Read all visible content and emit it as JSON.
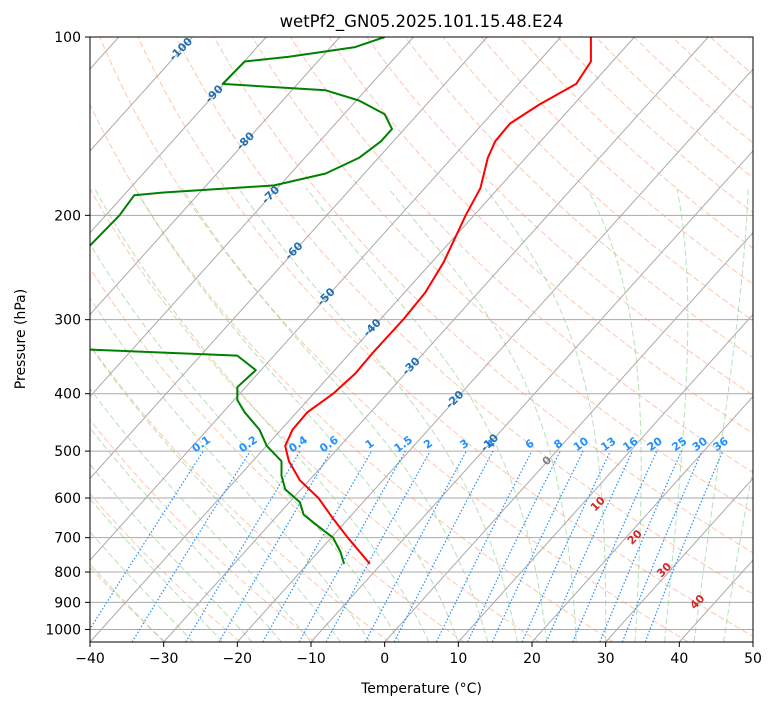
{
  "chart_data": {
    "type": "line",
    "title": "wetPf2_GN05.2025.101.15.48.E24",
    "xlabel": "Temperature (°C)",
    "ylabel": "Pressure (hPa)",
    "xlim": [
      -40,
      50
    ],
    "ylim_hpa": [
      1050,
      100
    ],
    "y_scale": "log",
    "grid": true,
    "x_ticks": [
      -40,
      -30,
      -20,
      -10,
      0,
      10,
      20,
      30,
      40,
      50
    ],
    "y_ticks": [
      100,
      200,
      300,
      400,
      500,
      600,
      700,
      800,
      900,
      1000
    ],
    "colors": {
      "temperature": "#ff0000",
      "dewpoint": "#008000",
      "isotherm": "#aaaaaa",
      "dry_adiabat": "#ff9966",
      "moist_adiabat": "#88cc88",
      "mixing_ratio": "#1e90ff",
      "isotherm_label": "#1f6fb5",
      "theta_label": "#d62728"
    },
    "series": [
      {
        "key": "temperature",
        "points": [
          {
            "p": 775,
            "t": -2.0
          },
          {
            "p": 700,
            "t": -5.0
          },
          {
            "p": 650,
            "t": -7.0
          },
          {
            "p": 600,
            "t": -9.0
          },
          {
            "p": 560,
            "t": -11.5
          },
          {
            "p": 520,
            "t": -13.0
          },
          {
            "p": 490,
            "t": -13.5
          },
          {
            "p": 460,
            "t": -12.5
          },
          {
            "p": 430,
            "t": -10.5
          },
          {
            "p": 400,
            "t": -7.0
          },
          {
            "p": 370,
            "t": -4.0
          },
          {
            "p": 340,
            "t": -1.5
          },
          {
            "p": 300,
            "t": 2.5
          },
          {
            "p": 270,
            "t": 5.5
          },
          {
            "p": 240,
            "t": 8.0
          },
          {
            "p": 200,
            "t": 11.0
          },
          {
            "p": 180,
            "t": 13.0
          },
          {
            "p": 160,
            "t": 14.0
          },
          {
            "p": 150,
            "t": 15.0
          },
          {
            "p": 140,
            "t": 17.0
          },
          {
            "p": 130,
            "t": 21.0
          },
          {
            "p": 120,
            "t": 26.0
          },
          {
            "p": 110,
            "t": 28.0
          },
          {
            "p": 100,
            "t": 28.0
          }
        ]
      },
      {
        "key": "dewpoint",
        "points": [
          {
            "p": 775,
            "t": -5.5
          },
          {
            "p": 740,
            "t": -6.0
          },
          {
            "p": 700,
            "t": -7.0
          },
          {
            "p": 670,
            "t": -9.0
          },
          {
            "p": 640,
            "t": -11.0
          },
          {
            "p": 610,
            "t": -11.5
          },
          {
            "p": 580,
            "t": -13.5
          },
          {
            "p": 550,
            "t": -14.0
          },
          {
            "p": 520,
            "t": -14.0
          },
          {
            "p": 490,
            "t": -16.0
          },
          {
            "p": 460,
            "t": -17.0
          },
          {
            "p": 430,
            "t": -19.0
          },
          {
            "p": 410,
            "t": -20.0
          },
          {
            "p": 390,
            "t": -20.0
          },
          {
            "p": 365,
            "t": -17.5
          },
          {
            "p": 345,
            "t": -20.0
          },
          {
            "p": 337,
            "t": -40.0
          }
        ]
      },
      {
        "key": "dewpoint_upper",
        "points": [
          {
            "p": 225,
            "t": -40.0
          },
          {
            "p": 200,
            "t": -36.0
          },
          {
            "p": 185,
            "t": -34.0
          },
          {
            "p": 183,
            "t": -30.0
          },
          {
            "p": 178,
            "t": -15.0
          },
          {
            "p": 170,
            "t": -8.0
          },
          {
            "p": 160,
            "t": -3.5
          },
          {
            "p": 150,
            "t": -0.5
          },
          {
            "p": 143,
            "t": 1.0
          },
          {
            "p": 135,
            "t": 0.0
          },
          {
            "p": 128,
            "t": -3.5
          },
          {
            "p": 123,
            "t": -8.0
          },
          {
            "p": 120,
            "t": -22.0
          },
          {
            "p": 110,
            "t": -19.0
          },
          {
            "p": 108,
            "t": -13.0
          },
          {
            "p": 104,
            "t": -4.0
          },
          {
            "p": 100,
            "t": 0.0
          }
        ]
      }
    ],
    "isotherm_labels": [
      "-100",
      "-90",
      "-80",
      "-70",
      "-60",
      "-50",
      "-40",
      "-30",
      "-20",
      "-10",
      "0"
    ],
    "mixing_ratio_labels": [
      "0.1",
      "0.2",
      "0.4",
      "0.6",
      "1",
      "1.5",
      "2",
      "3",
      "4",
      "6",
      "8",
      "10",
      "13",
      "16",
      "20",
      "25",
      "30",
      "36"
    ],
    "theta_labels": [
      "10",
      "20",
      "30",
      "40"
    ]
  }
}
